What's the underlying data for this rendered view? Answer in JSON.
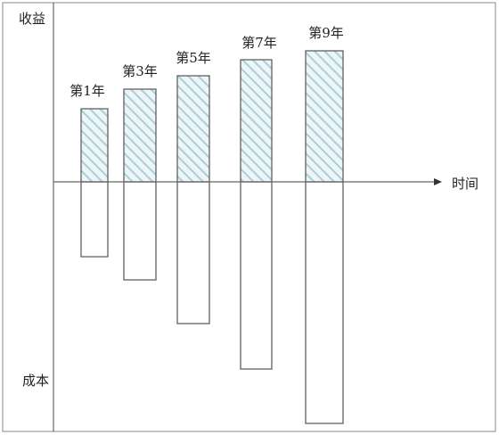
{
  "axis": {
    "y_top": "收益",
    "y_bottom": "成本",
    "x": "时间"
  },
  "bars": [
    {
      "label": "第1年"
    },
    {
      "label": "第3年"
    },
    {
      "label": "第5年"
    },
    {
      "label": "第7年"
    },
    {
      "label": "第9年"
    }
  ]
}
